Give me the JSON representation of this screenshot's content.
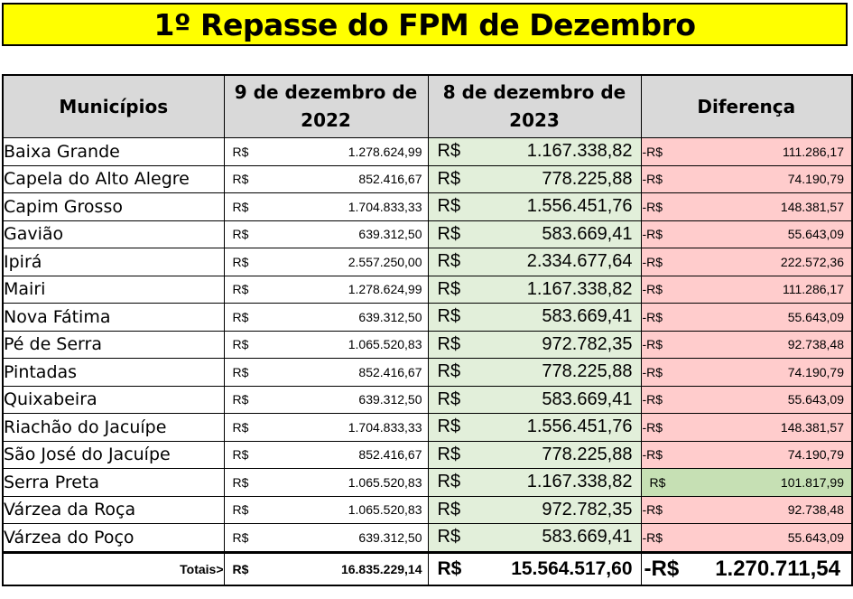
{
  "title": "1º Repasse do FPM de Dezembro",
  "headers": {
    "municipios": "Municípios",
    "date_2022_line1": "9 de dezembro de",
    "date_2022_line2": "2022",
    "date_2023_line1": "8 de dezembro de",
    "date_2023_line2": "2023",
    "diferenca": "Diferença"
  },
  "currency": "R$",
  "neg_currency": "-R$",
  "colors": {
    "title_bg": "#ffff00",
    "header_bg": "#d9d9d9",
    "col2023_bg": "#e2efda",
    "diff_neg_bg": "#ffcccc",
    "diff_pos_bg": "#c6e0b4"
  },
  "rows": [
    {
      "municipio": "Baixa Grande",
      "v2022": "1.278.624,99",
      "v2023": "1.167.338,82",
      "diff_prefix": "-R$",
      "diff": "111.286,17",
      "diff_sign": "negative"
    },
    {
      "municipio": "Capela do Alto Alegre",
      "v2022": "852.416,67",
      "v2023": "778.225,88",
      "diff_prefix": "-R$",
      "diff": "74.190,79",
      "diff_sign": "negative"
    },
    {
      "municipio": "Capim Grosso",
      "v2022": "1.704.833,33",
      "v2023": "1.556.451,76",
      "diff_prefix": "-R$",
      "diff": "148.381,57",
      "diff_sign": "negative"
    },
    {
      "municipio": "Gavião",
      "v2022": "639.312,50",
      "v2023": "583.669,41",
      "diff_prefix": "-R$",
      "diff": "55.643,09",
      "diff_sign": "negative"
    },
    {
      "municipio": "Ipirá",
      "v2022": "2.557.250,00",
      "v2023": "2.334.677,64",
      "diff_prefix": "-R$",
      "diff": "222.572,36",
      "diff_sign": "negative"
    },
    {
      "municipio": "Mairi",
      "v2022": "1.278.624,99",
      "v2023": "1.167.338,82",
      "diff_prefix": "-R$",
      "diff": "111.286,17",
      "diff_sign": "negative"
    },
    {
      "municipio": "Nova Fátima",
      "v2022": "639.312,50",
      "v2023": "583.669,41",
      "diff_prefix": "-R$",
      "diff": "55.643,09",
      "diff_sign": "negative"
    },
    {
      "municipio": "Pé de Serra",
      "v2022": "1.065.520,83",
      "v2023": "972.782,35",
      "diff_prefix": "-R$",
      "diff": "92.738,48",
      "diff_sign": "negative"
    },
    {
      "municipio": "Pintadas",
      "v2022": "852.416,67",
      "v2023": "778.225,88",
      "diff_prefix": "-R$",
      "diff": "74.190,79",
      "diff_sign": "negative"
    },
    {
      "municipio": "Quixabeira",
      "v2022": "639.312,50",
      "v2023": "583.669,41",
      "diff_prefix": "-R$",
      "diff": "55.643,09",
      "diff_sign": "negative"
    },
    {
      "municipio": "Riachão do Jacuípe",
      "v2022": "1.704.833,33",
      "v2023": "1.556.451,76",
      "diff_prefix": "-R$",
      "diff": "148.381,57",
      "diff_sign": "negative"
    },
    {
      "municipio": "São José do Jacuípe",
      "v2022": "852.416,67",
      "v2023": "778.225,88",
      "diff_prefix": "-R$",
      "diff": "74.190,79",
      "diff_sign": "negative"
    },
    {
      "municipio": "Serra Preta",
      "v2022": "1.065.520,83",
      "v2023": "1.167.338,82",
      "diff_prefix": "R$",
      "diff": "101.817,99",
      "diff_sign": "positive"
    },
    {
      "municipio": "Várzea da Roça",
      "v2022": "1.065.520,83",
      "v2023": "972.782,35",
      "diff_prefix": "-R$",
      "diff": "92.738,48",
      "diff_sign": "negative"
    },
    {
      "municipio": "Várzea do Poço",
      "v2022": "639.312,50",
      "v2023": "583.669,41",
      "diff_prefix": "-R$",
      "diff": "55.643,09",
      "diff_sign": "negative"
    }
  ],
  "totals": {
    "label": "Totais>",
    "v2022": "16.835.229,14",
    "v2023": "15.564.517,60",
    "diff_prefix": "-R$",
    "diff": "1.270.711,54"
  }
}
